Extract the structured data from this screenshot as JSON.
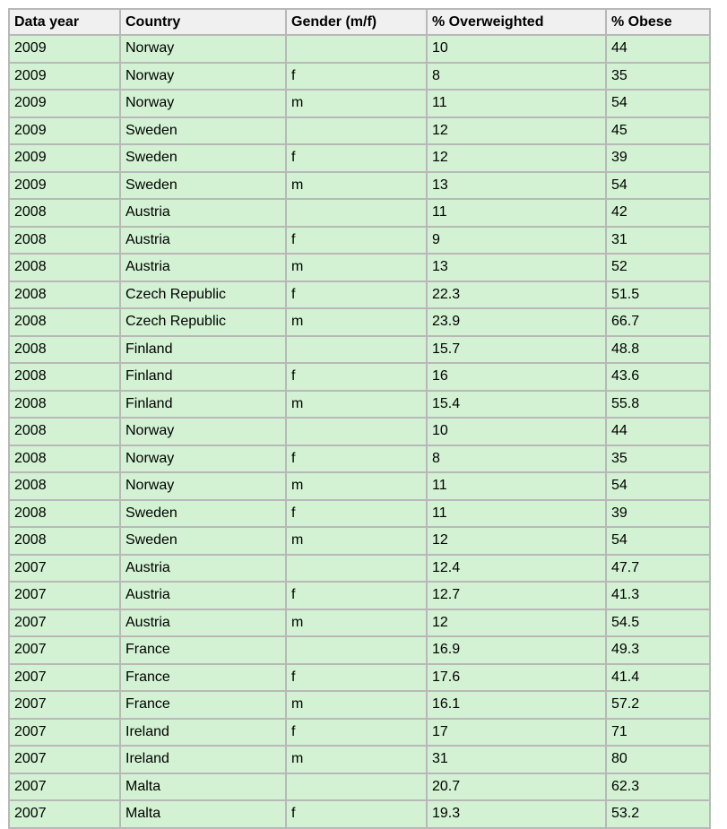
{
  "table": {
    "headers": [
      "Data year",
      "Country",
      "Gender (m/f)",
      "% Overweighted",
      "% Obese"
    ],
    "rows": [
      [
        "2009",
        "Norway",
        "",
        "10",
        "44"
      ],
      [
        "2009",
        "Norway",
        "f",
        "8",
        "35"
      ],
      [
        "2009",
        "Norway",
        "m",
        "11",
        "54"
      ],
      [
        "2009",
        "Sweden",
        "",
        "12",
        "45"
      ],
      [
        "2009",
        "Sweden",
        "f",
        "12",
        "39"
      ],
      [
        "2009",
        "Sweden",
        "m",
        "13",
        "54"
      ],
      [
        "2008",
        "Austria",
        "",
        "11",
        "42"
      ],
      [
        "2008",
        "Austria",
        "f",
        "9",
        "31"
      ],
      [
        "2008",
        "Austria",
        "m",
        "13",
        "52"
      ],
      [
        "2008",
        "Czech Republic",
        "f",
        "22.3",
        "51.5"
      ],
      [
        "2008",
        "Czech Republic",
        "m",
        "23.9",
        "66.7"
      ],
      [
        "2008",
        "Finland",
        "",
        "15.7",
        "48.8"
      ],
      [
        "2008",
        "Finland",
        "f",
        "16",
        "43.6"
      ],
      [
        "2008",
        "Finland",
        "m",
        "15.4",
        "55.8"
      ],
      [
        "2008",
        "Norway",
        "",
        "10",
        "44"
      ],
      [
        "2008",
        "Norway",
        "f",
        "8",
        "35"
      ],
      [
        "2008",
        "Norway",
        "m",
        "11",
        "54"
      ],
      [
        "2008",
        "Sweden",
        "f",
        "11",
        "39"
      ],
      [
        "2008",
        "Sweden",
        "m",
        "12",
        "54"
      ],
      [
        "2007",
        "Austria",
        "",
        "12.4",
        "47.7"
      ],
      [
        "2007",
        "Austria",
        "f",
        "12.7",
        "41.3"
      ],
      [
        "2007",
        "Austria",
        "m",
        "12",
        "54.5"
      ],
      [
        "2007",
        "France",
        "",
        "16.9",
        "49.3"
      ],
      [
        "2007",
        "France",
        "f",
        "17.6",
        "41.4"
      ],
      [
        "2007",
        "France",
        "m",
        "16.1",
        "57.2"
      ],
      [
        "2007",
        "Ireland",
        "f",
        "17",
        "71"
      ],
      [
        "2007",
        "Ireland",
        "m",
        "31",
        "80"
      ],
      [
        "2007",
        "Malta",
        "",
        "20.7",
        "62.3"
      ],
      [
        "2007",
        "Malta",
        "f",
        "19.3",
        "53.2"
      ]
    ]
  },
  "colors": {
    "header_bg": "#f0f0f0",
    "cell_bg": "#d3f2d3",
    "border": "#b8b8b8"
  }
}
